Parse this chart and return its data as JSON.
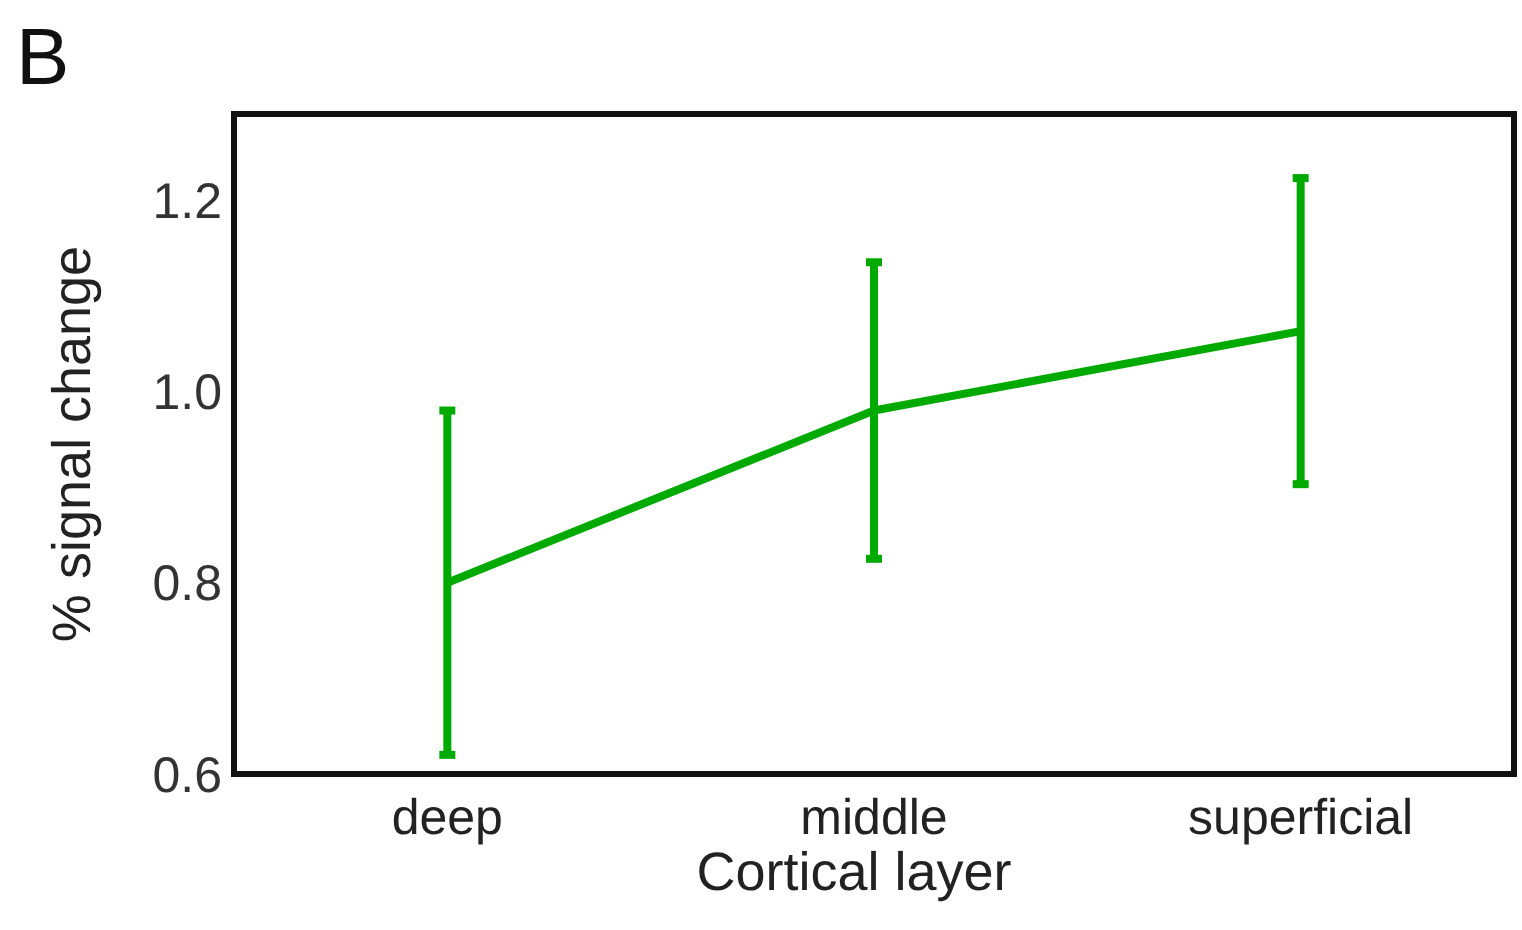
{
  "chart_data": {
    "type": "line",
    "xlabel": "Cortical layer",
    "ylabel": "% signal change",
    "annotations": [
      "B"
    ],
    "categories": [
      "deep",
      "middle",
      "superficial"
    ],
    "series": [
      {
        "color": "#00aa00",
        "values": [
          0.8,
          0.98,
          1.063
        ],
        "errors": [
          0.18,
          0.155,
          0.16
        ]
      }
    ],
    "ylim": [
      0.6,
      1.29
    ],
    "yticks": [
      {
        "value": 0.6,
        "label": "0.6"
      },
      {
        "value": 0.8,
        "label": "0.8"
      },
      {
        "value": 1.0,
        "label": "1.0"
      },
      {
        "value": 1.2,
        "label": "1.2"
      }
    ],
    "grid": false,
    "marker": "none",
    "line_style": "solid"
  }
}
